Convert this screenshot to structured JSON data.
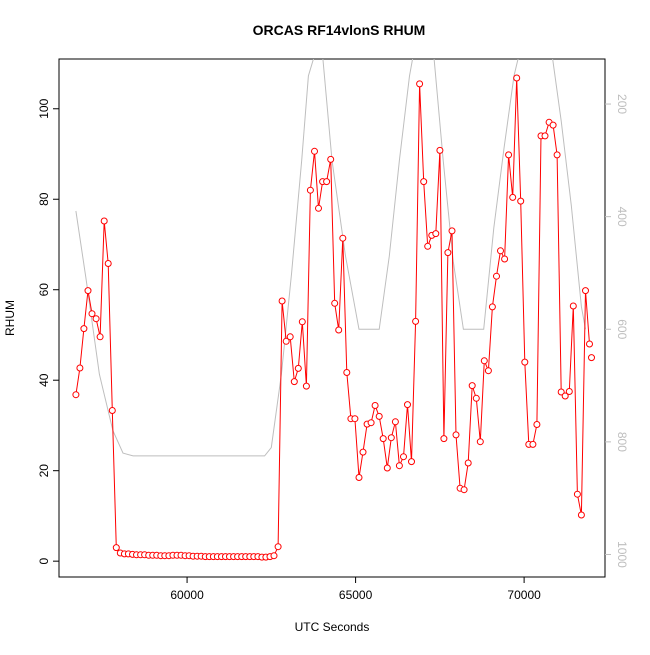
{
  "chart_data": {
    "type": "line",
    "title": "ORCAS RF14vlonS RHUM",
    "xlabel": "UTC Seconds",
    "ylabel": "RHUM",
    "xlim": [
      56200,
      72400
    ],
    "ylim": [
      -3.5,
      111
    ],
    "x_ticks": [
      60000,
      65000,
      70000
    ],
    "y_ticks": [
      0,
      20,
      40,
      60,
      80,
      100
    ],
    "right_axis": {
      "ticks": [
        200,
        400,
        600,
        800,
        1000
      ],
      "range": [
        1040,
        120
      ],
      "color": "#bebebe"
    },
    "series": [
      {
        "type": "line-points",
        "color": "#ff0000",
        "x": [
          56700,
          56820,
          56940,
          57060,
          57180,
          57300,
          57420,
          57540,
          57660,
          57780,
          57900,
          58020,
          58140,
          58260,
          58380,
          58500,
          58620,
          58740,
          58860,
          58980,
          59100,
          59220,
          59340,
          59460,
          59580,
          59700,
          59820,
          59940,
          60060,
          60180,
          60300,
          60420,
          60540,
          60660,
          60780,
          60900,
          61020,
          61140,
          61260,
          61380,
          61500,
          61620,
          61740,
          61860,
          61980,
          62100,
          62220,
          62340,
          62460,
          62580,
          62700,
          62820,
          62940,
          63060,
          63180,
          63300,
          63420,
          63540,
          63660,
          63780,
          63900,
          64020,
          64140,
          64260,
          64380,
          64500,
          64620,
          64740,
          64860,
          64980,
          65100,
          65220,
          65340,
          65460,
          65580,
          65700,
          65820,
          65940,
          66060,
          66180,
          66300,
          66420,
          66540,
          66660,
          66780,
          66900,
          67020,
          67140,
          67260,
          67380,
          67500,
          67620,
          67740,
          67860,
          67980,
          68100,
          68220,
          68340,
          68460,
          68580,
          68700,
          68820,
          68940,
          69060,
          69180,
          69300,
          69420,
          69540,
          69660,
          69780,
          69900,
          70020,
          70140,
          70260,
          70380,
          70500,
          70620,
          70740,
          70860,
          70980,
          71100,
          71220,
          71340,
          71460,
          71580,
          71700,
          71820,
          71940
        ],
        "y": [
          36.8,
          42.7,
          51.4,
          59.8,
          54.7,
          53.6,
          49.6,
          75.2,
          65.8,
          33.3,
          3.0,
          1.8,
          1.6,
          1.6,
          1.5,
          1.4,
          1.4,
          1.4,
          1.3,
          1.3,
          1.3,
          1.2,
          1.2,
          1.2,
          1.3,
          1.3,
          1.3,
          1.2,
          1.2,
          1.1,
          1.1,
          1.1,
          1.0,
          1.0,
          1.0,
          1.0,
          1.0,
          1.0,
          1.0,
          1.0,
          1.0,
          1.0,
          1.0,
          1.0,
          1.0,
          1.0,
          0.9,
          0.9,
          1.0,
          1.2,
          3.2,
          57.5,
          48.6,
          49.6,
          39.7,
          42.6,
          52.9,
          38.7,
          82.0,
          90.6,
          78.0,
          83.9,
          83.9,
          88.8,
          57.0,
          51.1,
          71.4,
          41.7,
          31.5,
          31.5,
          18.5,
          24.1,
          30.3,
          30.6,
          34.4,
          32.0,
          27.1,
          20.6,
          27.3,
          30.8,
          21.1,
          23.1,
          34.6,
          22.0,
          53.0,
          105.5,
          83.9,
          69.6,
          72.0,
          72.4,
          90.8,
          27.1,
          68.2,
          73.0,
          27.9,
          16.1,
          15.8,
          21.7,
          38.8,
          36.0,
          26.4,
          44.3,
          42.1,
          56.2,
          63.0,
          68.6,
          66.8,
          89.8,
          80.4,
          106.8,
          79.6,
          44.0,
          25.8,
          25.8,
          30.2,
          94.0,
          94.0,
          97.0,
          96.4,
          89.8,
          37.4,
          36.5,
          37.5,
          56.4,
          14.8,
          10.2,
          59.8,
          48.0
        ],
        "extra_points": [
          {
            "x": 72000,
            "y": 45.0
          }
        ]
      },
      {
        "type": "line",
        "axis": "right",
        "color": "#bebebe",
        "x": [
          56700,
          57000,
          57400,
          57800,
          58100,
          58400,
          59000,
          60000,
          61000,
          62000,
          62300,
          62500,
          62800,
          63100,
          63400,
          63600,
          63850,
          64000,
          64300,
          64700,
          65100,
          65700,
          66000,
          66300,
          66600,
          66750,
          67000,
          67300,
          67600,
          67900,
          68200,
          68500,
          68800,
          69100,
          69400,
          69700,
          69900,
          70200,
          70500,
          70800,
          71100,
          71400,
          71700,
          71820
        ],
        "y": [
          390,
          510,
          680,
          780,
          820,
          825,
          825,
          825,
          825,
          825,
          825,
          810,
          680,
          500,
          300,
          150,
          100,
          100,
          300,
          470,
          600,
          600,
          470,
          300,
          150,
          100,
          100,
          100,
          300,
          480,
          600,
          600,
          600,
          420,
          280,
          150,
          100,
          100,
          100,
          100,
          230,
          380,
          560,
          600
        ]
      }
    ]
  }
}
